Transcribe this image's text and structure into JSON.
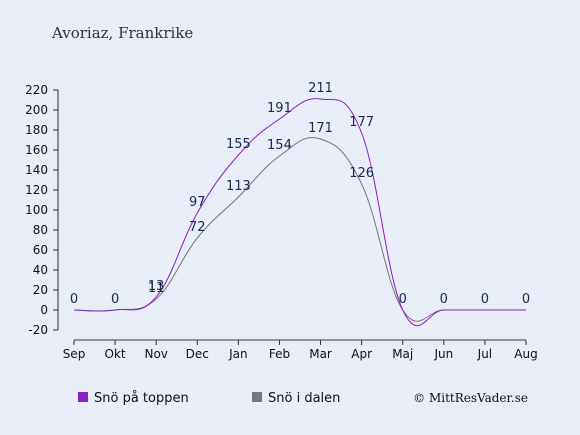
{
  "chart_data": {
    "type": "line",
    "title": "Avoriaz, Frankrike",
    "categories": [
      "Sep",
      "Okt",
      "Nov",
      "Dec",
      "Jan",
      "Feb",
      "Mar",
      "Apr",
      "Maj",
      "Jun",
      "Jul",
      "Aug"
    ],
    "yticks": [
      "220",
      "200",
      "180",
      "160",
      "140",
      "120",
      "100",
      "80",
      "60",
      "40",
      "20",
      "0",
      "-20"
    ],
    "ylim": [
      -20,
      220
    ],
    "series": [
      {
        "name": "Snö på toppen",
        "color": "#8b1fc6",
        "values": [
          0,
          0,
          13,
          97,
          155,
          191,
          211,
          177,
          0,
          0,
          0,
          0
        ],
        "labels": [
          "0",
          "0",
          "13",
          "97",
          "155",
          "191",
          "211",
          "177",
          "0",
          "0",
          "0",
          "0"
        ]
      },
      {
        "name": "Snö i dalen",
        "color": "#777777",
        "values": [
          0,
          0,
          11,
          72,
          113,
          154,
          171,
          126,
          0,
          0,
          0,
          0
        ],
        "labels": [
          "",
          "",
          "11",
          "72",
          "113",
          "154",
          "171",
          "126",
          "",
          "",
          "",
          ""
        ]
      }
    ],
    "legend_position": "bottom-left",
    "credit": "© MittResVader.se"
  }
}
